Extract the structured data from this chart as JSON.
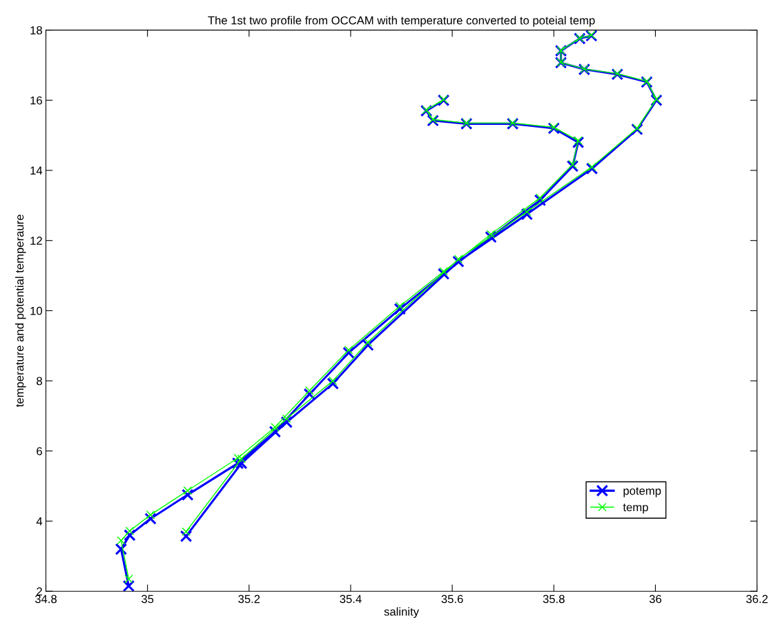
{
  "chart_data": {
    "type": "line",
    "title": "The 1st two profile from OCCAM with temperature converted to poteial temp",
    "xlabel": "salinity",
    "ylabel": "temperature and potential temperaure",
    "xlim": [
      34.8,
      36.2
    ],
    "xticks": [
      34.8,
      35,
      35.2,
      35.4,
      35.6,
      35.8,
      36,
      36.2
    ],
    "ylim": [
      2,
      18
    ],
    "yticks": [
      2,
      4,
      6,
      8,
      10,
      12,
      14,
      16,
      18
    ],
    "grid": false,
    "legend": "bottom right",
    "marker": "cross",
    "line_style": "solid",
    "series": [
      {
        "name": "potemp",
        "color": "#0000ff",
        "x": [
          35.874,
          35.851,
          35.814,
          35.814,
          35.86,
          35.925,
          35.983,
          36.002,
          35.964,
          35.875,
          35.747,
          35.612,
          35.434,
          35.365,
          35.274,
          35.185,
          35.076,
          null,
          35.583,
          35.549,
          35.562,
          35.628,
          35.719,
          35.8,
          35.848,
          35.837,
          35.773,
          35.676,
          35.583,
          35.497,
          35.396,
          35.319,
          35.251,
          35.178,
          35.079,
          35.006,
          34.965,
          34.948,
          34.963
        ],
        "values": [
          17.84,
          17.76,
          17.41,
          17.07,
          16.88,
          16.74,
          16.52,
          16.0,
          15.17,
          14.05,
          12.75,
          11.4,
          9.02,
          7.92,
          6.82,
          5.65,
          3.57,
          null,
          16.0,
          15.7,
          15.42,
          15.33,
          15.33,
          15.2,
          14.8,
          14.12,
          13.15,
          12.1,
          11.05,
          10.05,
          8.8,
          7.62,
          6.55,
          5.65,
          4.75,
          4.07,
          3.6,
          3.2,
          2.15
        ]
      },
      {
        "name": "temp",
        "color": "#00ff00",
        "x": [
          35.874,
          35.851,
          35.814,
          35.814,
          35.86,
          35.925,
          35.983,
          36.002,
          35.964,
          35.875,
          35.747,
          35.612,
          35.434,
          35.365,
          35.274,
          35.185,
          35.076,
          null,
          35.583,
          35.549,
          35.562,
          35.628,
          35.719,
          35.8,
          35.848,
          35.837,
          35.773,
          35.676,
          35.583,
          35.497,
          35.396,
          35.319,
          35.251,
          35.178,
          35.079,
          35.006,
          34.965,
          34.948,
          34.963
        ],
        "values": [
          17.86,
          17.77,
          17.42,
          17.08,
          16.89,
          16.76,
          16.54,
          16.03,
          15.2,
          14.1,
          12.82,
          11.47,
          9.1,
          8.0,
          6.92,
          5.78,
          3.7,
          null,
          16.02,
          15.72,
          15.45,
          15.35,
          15.35,
          15.23,
          14.85,
          14.17,
          13.22,
          12.18,
          11.12,
          10.13,
          8.88,
          7.72,
          6.68,
          5.8,
          4.87,
          4.18,
          3.72,
          3.45,
          2.35
        ]
      }
    ]
  }
}
